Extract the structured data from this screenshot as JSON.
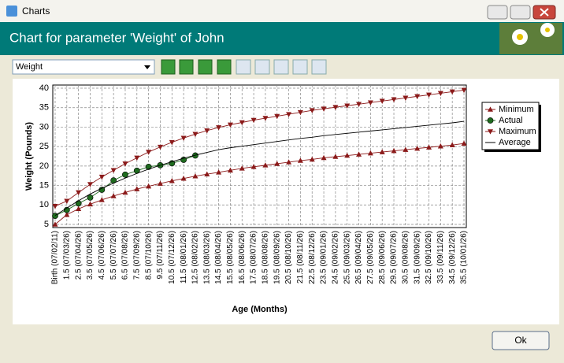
{
  "window": {
    "title": "Charts"
  },
  "header": {
    "title": "Chart for parameter 'Weight' of John"
  },
  "toolbar": {
    "dropdown": "Weight"
  },
  "footer": {
    "ok_button": "Ok"
  },
  "chart_data": {
    "type": "line",
    "x_label": "Age (Months)",
    "y_label": "Weight (Pounds)",
    "categories": [
      "Birth (07/02/11)",
      "1.5 (07/03/26)",
      "2.5 (07/04/26)",
      "3.5 (07/05/26)",
      "4.5 (07/06/26)",
      "5.5 (07/07/26)",
      "6.5 (07/08/26)",
      "7.5 (07/09/26)",
      "8.5 (07/10/26)",
      "9.5 (07/11/26)",
      "10.5 (07/12/26)",
      "11.5 (08/01/26)",
      "12.5 (08/02/26)",
      "13.5 (08/03/26)",
      "14.5 (08/04/26)",
      "15.5 (08/05/26)",
      "16.5 (08/06/26)",
      "17.5 (08/07/26)",
      "18.5 (08/08/26)",
      "19.5 (08/09/26)",
      "20.5 (08/10/26)",
      "21.5 (08/11/26)",
      "22.5 (08/12/26)",
      "23.5 (09/01/26)",
      "24.5 (09/02/26)",
      "25.5 (09/03/26)",
      "26.5 (09/04/26)",
      "27.5 (09/05/26)",
      "28.5 (09/06/26)",
      "29.5 (09/07/26)",
      "30.5 (09/08/26)",
      "31.5 (09/09/26)",
      "32.5 (09/10/26)",
      "33.5 (09/11/26)",
      "34.5 (09/12/26)",
      "35.5 (10/01/26)"
    ],
    "series": [
      {
        "name": "Minimum",
        "color": "#8b1a1a",
        "marker": "triangle-up",
        "values": [
          5,
          7.5,
          9,
          10.2,
          11.3,
          12.3,
          13.2,
          14.1,
          14.8,
          15.5,
          16.2,
          16.8,
          17.4,
          17.9,
          18.4,
          18.9,
          19.4,
          19.8,
          20.2,
          20.6,
          21,
          21.4,
          21.7,
          22.1,
          22.4,
          22.7,
          23,
          23.3,
          23.6,
          23.9,
          24.2,
          24.5,
          24.8,
          25.1,
          25.4,
          25.8
        ]
      },
      {
        "name": "Actual",
        "color": "#1e6b1e",
        "marker": "circle",
        "values": [
          7.2,
          8.7,
          10.4,
          11.9,
          13.9,
          16.3,
          17.8,
          18.8,
          19.8,
          20.2,
          20.7,
          21.6,
          22.7,
          null,
          null,
          null,
          null,
          null,
          null,
          null,
          null,
          null,
          null,
          null,
          null,
          null,
          null,
          null,
          null,
          null,
          null,
          null,
          null,
          null,
          null,
          null
        ]
      },
      {
        "name": "Maximum",
        "color": "#8b1a1a",
        "marker": "triangle-down",
        "values": [
          9.7,
          11,
          13.2,
          15.3,
          17.2,
          18.9,
          20.6,
          22.1,
          23.6,
          24.9,
          26.1,
          27.2,
          28.2,
          29.1,
          29.9,
          30.6,
          31.2,
          31.8,
          32.3,
          32.8,
          33.3,
          33.8,
          34.3,
          34.7,
          35.1,
          35.5,
          35.9,
          36.3,
          36.7,
          37.1,
          37.5,
          37.9,
          38.3,
          38.7,
          39.1,
          39.5
        ]
      },
      {
        "name": "Average",
        "color": "#000000",
        "marker": "none",
        "values": [
          7.3,
          9.2,
          11.1,
          12.8,
          14.3,
          15.6,
          16.9,
          18.1,
          19.2,
          20.2,
          21.1,
          22,
          22.8,
          23.5,
          24.2,
          24.7,
          25.1,
          25.5,
          25.9,
          26.3,
          26.7,
          27.1,
          27.4,
          27.8,
          28.1,
          28.4,
          28.7,
          29,
          29.3,
          29.6,
          29.9,
          30.2,
          30.5,
          30.8,
          31.1,
          31.5
        ]
      }
    ],
    "ylim": [
      5,
      40
    ],
    "yticks": [
      5,
      10,
      15,
      20,
      25,
      30,
      35,
      40
    ],
    "grid": true
  }
}
